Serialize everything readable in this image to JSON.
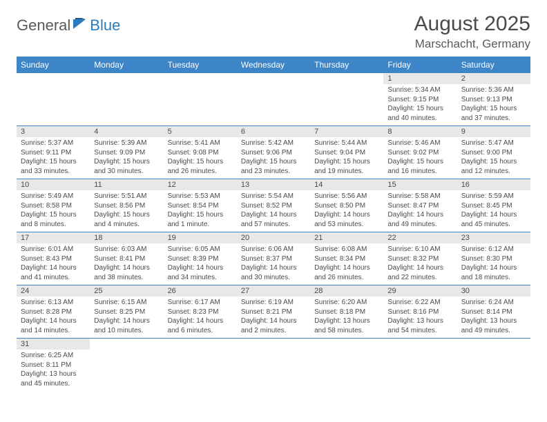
{
  "logo": {
    "general": "General",
    "blue": "Blue"
  },
  "title": "August 2025",
  "location": "Marschacht, Germany",
  "colors": {
    "header_bg": "#3d85c6",
    "header_text": "#ffffff",
    "daynum_bg": "#e8e8e8",
    "text": "#4a4a4a",
    "row_border": "#3d85c6",
    "logo_blue": "#2b7bbf"
  },
  "daysOfWeek": [
    "Sunday",
    "Monday",
    "Tuesday",
    "Wednesday",
    "Thursday",
    "Friday",
    "Saturday"
  ],
  "weeks": [
    [
      null,
      null,
      null,
      null,
      null,
      {
        "n": "1",
        "sr": "Sunrise: 5:34 AM",
        "ss": "Sunset: 9:15 PM",
        "dl1": "Daylight: 15 hours",
        "dl2": "and 40 minutes."
      },
      {
        "n": "2",
        "sr": "Sunrise: 5:36 AM",
        "ss": "Sunset: 9:13 PM",
        "dl1": "Daylight: 15 hours",
        "dl2": "and 37 minutes."
      }
    ],
    [
      {
        "n": "3",
        "sr": "Sunrise: 5:37 AM",
        "ss": "Sunset: 9:11 PM",
        "dl1": "Daylight: 15 hours",
        "dl2": "and 33 minutes."
      },
      {
        "n": "4",
        "sr": "Sunrise: 5:39 AM",
        "ss": "Sunset: 9:09 PM",
        "dl1": "Daylight: 15 hours",
        "dl2": "and 30 minutes."
      },
      {
        "n": "5",
        "sr": "Sunrise: 5:41 AM",
        "ss": "Sunset: 9:08 PM",
        "dl1": "Daylight: 15 hours",
        "dl2": "and 26 minutes."
      },
      {
        "n": "6",
        "sr": "Sunrise: 5:42 AM",
        "ss": "Sunset: 9:06 PM",
        "dl1": "Daylight: 15 hours",
        "dl2": "and 23 minutes."
      },
      {
        "n": "7",
        "sr": "Sunrise: 5:44 AM",
        "ss": "Sunset: 9:04 PM",
        "dl1": "Daylight: 15 hours",
        "dl2": "and 19 minutes."
      },
      {
        "n": "8",
        "sr": "Sunrise: 5:46 AM",
        "ss": "Sunset: 9:02 PM",
        "dl1": "Daylight: 15 hours",
        "dl2": "and 16 minutes."
      },
      {
        "n": "9",
        "sr": "Sunrise: 5:47 AM",
        "ss": "Sunset: 9:00 PM",
        "dl1": "Daylight: 15 hours",
        "dl2": "and 12 minutes."
      }
    ],
    [
      {
        "n": "10",
        "sr": "Sunrise: 5:49 AM",
        "ss": "Sunset: 8:58 PM",
        "dl1": "Daylight: 15 hours",
        "dl2": "and 8 minutes."
      },
      {
        "n": "11",
        "sr": "Sunrise: 5:51 AM",
        "ss": "Sunset: 8:56 PM",
        "dl1": "Daylight: 15 hours",
        "dl2": "and 4 minutes."
      },
      {
        "n": "12",
        "sr": "Sunrise: 5:53 AM",
        "ss": "Sunset: 8:54 PM",
        "dl1": "Daylight: 15 hours",
        "dl2": "and 1 minute."
      },
      {
        "n": "13",
        "sr": "Sunrise: 5:54 AM",
        "ss": "Sunset: 8:52 PM",
        "dl1": "Daylight: 14 hours",
        "dl2": "and 57 minutes."
      },
      {
        "n": "14",
        "sr": "Sunrise: 5:56 AM",
        "ss": "Sunset: 8:50 PM",
        "dl1": "Daylight: 14 hours",
        "dl2": "and 53 minutes."
      },
      {
        "n": "15",
        "sr": "Sunrise: 5:58 AM",
        "ss": "Sunset: 8:47 PM",
        "dl1": "Daylight: 14 hours",
        "dl2": "and 49 minutes."
      },
      {
        "n": "16",
        "sr": "Sunrise: 5:59 AM",
        "ss": "Sunset: 8:45 PM",
        "dl1": "Daylight: 14 hours",
        "dl2": "and 45 minutes."
      }
    ],
    [
      {
        "n": "17",
        "sr": "Sunrise: 6:01 AM",
        "ss": "Sunset: 8:43 PM",
        "dl1": "Daylight: 14 hours",
        "dl2": "and 41 minutes."
      },
      {
        "n": "18",
        "sr": "Sunrise: 6:03 AM",
        "ss": "Sunset: 8:41 PM",
        "dl1": "Daylight: 14 hours",
        "dl2": "and 38 minutes."
      },
      {
        "n": "19",
        "sr": "Sunrise: 6:05 AM",
        "ss": "Sunset: 8:39 PM",
        "dl1": "Daylight: 14 hours",
        "dl2": "and 34 minutes."
      },
      {
        "n": "20",
        "sr": "Sunrise: 6:06 AM",
        "ss": "Sunset: 8:37 PM",
        "dl1": "Daylight: 14 hours",
        "dl2": "and 30 minutes."
      },
      {
        "n": "21",
        "sr": "Sunrise: 6:08 AM",
        "ss": "Sunset: 8:34 PM",
        "dl1": "Daylight: 14 hours",
        "dl2": "and 26 minutes."
      },
      {
        "n": "22",
        "sr": "Sunrise: 6:10 AM",
        "ss": "Sunset: 8:32 PM",
        "dl1": "Daylight: 14 hours",
        "dl2": "and 22 minutes."
      },
      {
        "n": "23",
        "sr": "Sunrise: 6:12 AM",
        "ss": "Sunset: 8:30 PM",
        "dl1": "Daylight: 14 hours",
        "dl2": "and 18 minutes."
      }
    ],
    [
      {
        "n": "24",
        "sr": "Sunrise: 6:13 AM",
        "ss": "Sunset: 8:28 PM",
        "dl1": "Daylight: 14 hours",
        "dl2": "and 14 minutes."
      },
      {
        "n": "25",
        "sr": "Sunrise: 6:15 AM",
        "ss": "Sunset: 8:25 PM",
        "dl1": "Daylight: 14 hours",
        "dl2": "and 10 minutes."
      },
      {
        "n": "26",
        "sr": "Sunrise: 6:17 AM",
        "ss": "Sunset: 8:23 PM",
        "dl1": "Daylight: 14 hours",
        "dl2": "and 6 minutes."
      },
      {
        "n": "27",
        "sr": "Sunrise: 6:19 AM",
        "ss": "Sunset: 8:21 PM",
        "dl1": "Daylight: 14 hours",
        "dl2": "and 2 minutes."
      },
      {
        "n": "28",
        "sr": "Sunrise: 6:20 AM",
        "ss": "Sunset: 8:18 PM",
        "dl1": "Daylight: 13 hours",
        "dl2": "and 58 minutes."
      },
      {
        "n": "29",
        "sr": "Sunrise: 6:22 AM",
        "ss": "Sunset: 8:16 PM",
        "dl1": "Daylight: 13 hours",
        "dl2": "and 54 minutes."
      },
      {
        "n": "30",
        "sr": "Sunrise: 6:24 AM",
        "ss": "Sunset: 8:14 PM",
        "dl1": "Daylight: 13 hours",
        "dl2": "and 49 minutes."
      }
    ],
    [
      {
        "n": "31",
        "sr": "Sunrise: 6:25 AM",
        "ss": "Sunset: 8:11 PM",
        "dl1": "Daylight: 13 hours",
        "dl2": "and 45 minutes."
      },
      null,
      null,
      null,
      null,
      null,
      null
    ]
  ]
}
